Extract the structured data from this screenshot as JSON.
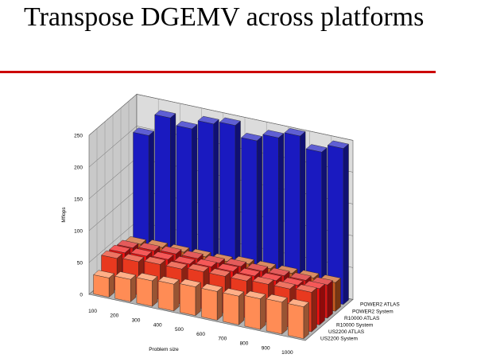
{
  "slide": {
    "title": "Transpose DGEMV across platforms"
  },
  "chart_data": {
    "type": "bar3d",
    "title": "",
    "xlabel": "Problem size",
    "ylabel": "Mflops",
    "ylim": [
      0,
      250
    ],
    "yticks": [
      0,
      50,
      100,
      150,
      200,
      250
    ],
    "categories": [
      "100",
      "200",
      "300",
      "400",
      "500",
      "600",
      "700",
      "800",
      "900",
      "1000"
    ],
    "grid": true,
    "series": [
      {
        "name": "US2200 System",
        "color": "#ff8c55",
        "values": [
          30,
          35,
          40,
          42,
          45,
          45,
          45,
          48,
          50,
          50
        ]
      },
      {
        "name": "US2200 ATLAS",
        "color": "#e8391f",
        "values": [
          50,
          52,
          55,
          55,
          58,
          58,
          58,
          60,
          60,
          62
        ]
      },
      {
        "name": "R10000 System",
        "color": "#f01010",
        "values": [
          48,
          50,
          52,
          52,
          55,
          55,
          55,
          55,
          55,
          57
        ]
      },
      {
        "name": "R10000 ATLAS",
        "color": "#d81414",
        "values": [
          45,
          48,
          50,
          50,
          50,
          52,
          52,
          52,
          52,
          52
        ]
      },
      {
        "name": "POWER2 System",
        "color": "#c85a1e",
        "values": [
          40,
          42,
          42,
          42,
          42,
          45,
          45,
          45,
          45,
          45
        ]
      },
      {
        "name": "POWER2 ATLAS",
        "color": "#1a1ac0",
        "values": [
          200,
          235,
          225,
          240,
          245,
          228,
          240,
          250,
          232,
          245
        ]
      }
    ]
  }
}
